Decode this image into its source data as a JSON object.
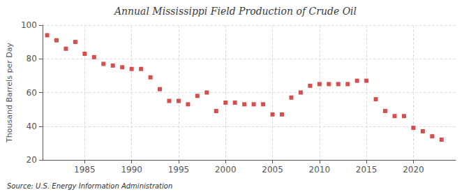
{
  "chart_data": {
    "type": "scatter",
    "title": "Annual Mississippi Field Production of Crude Oil",
    "ylabel": "Thousand Barrels per Day",
    "annotation": "Source: U.S. Energy Information Administration",
    "x": [
      1981,
      1982,
      1983,
      1984,
      1985,
      1986,
      1987,
      1988,
      1989,
      1990,
      1991,
      1992,
      1993,
      1994,
      1995,
      1996,
      1997,
      1998,
      1999,
      2000,
      2001,
      2002,
      2003,
      2004,
      2005,
      2006,
      2007,
      2008,
      2009,
      2010,
      2011,
      2012,
      2013,
      2014,
      2015,
      2016,
      2017,
      2018,
      2019,
      2020,
      2021,
      2022,
      2023
    ],
    "values": [
      94,
      91,
      86,
      90,
      83,
      81,
      77,
      76,
      75,
      74,
      74,
      69,
      62,
      55,
      55,
      53,
      58,
      60,
      49,
      54,
      54,
      53,
      53,
      53,
      47,
      47,
      57,
      60,
      64,
      65,
      65,
      65,
      65,
      67,
      67,
      56,
      49,
      46,
      46,
      39,
      37,
      34,
      32
    ],
    "color": "#cc2222",
    "marker": "square",
    "xlim": [
      1980.5,
      2024.5
    ],
    "xticks": [
      1985,
      1990,
      1995,
      2000,
      2005,
      2010,
      2015,
      2020
    ],
    "ylim": [
      20,
      100
    ],
    "yticks": [
      20,
      40,
      60,
      80,
      100
    ],
    "grid": true
  }
}
